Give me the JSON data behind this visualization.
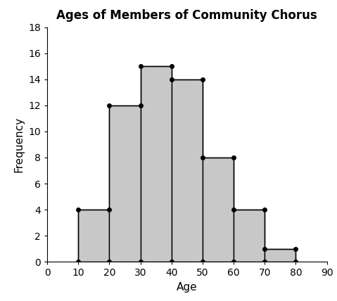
{
  "title": "Ages of Members of Community Chorus",
  "xlabel": "Age",
  "ylabel": "Frequency",
  "bar_edges": [
    10,
    20,
    30,
    40,
    50,
    60,
    70,
    80
  ],
  "frequencies": [
    4,
    12,
    15,
    14,
    8,
    4,
    1
  ],
  "bar_color": "#c8c8c8",
  "bar_edgecolor": "#000000",
  "xlim": [
    0,
    90
  ],
  "ylim": [
    0,
    18
  ],
  "xticks": [
    0,
    10,
    20,
    30,
    40,
    50,
    60,
    70,
    80,
    90
  ],
  "yticks": [
    0,
    2,
    4,
    6,
    8,
    10,
    12,
    14,
    16,
    18
  ],
  "title_fontsize": 12,
  "axis_label_fontsize": 11,
  "tick_fontsize": 10,
  "dot_color": "#000000",
  "dot_size": 25,
  "linewidth": 1.0
}
